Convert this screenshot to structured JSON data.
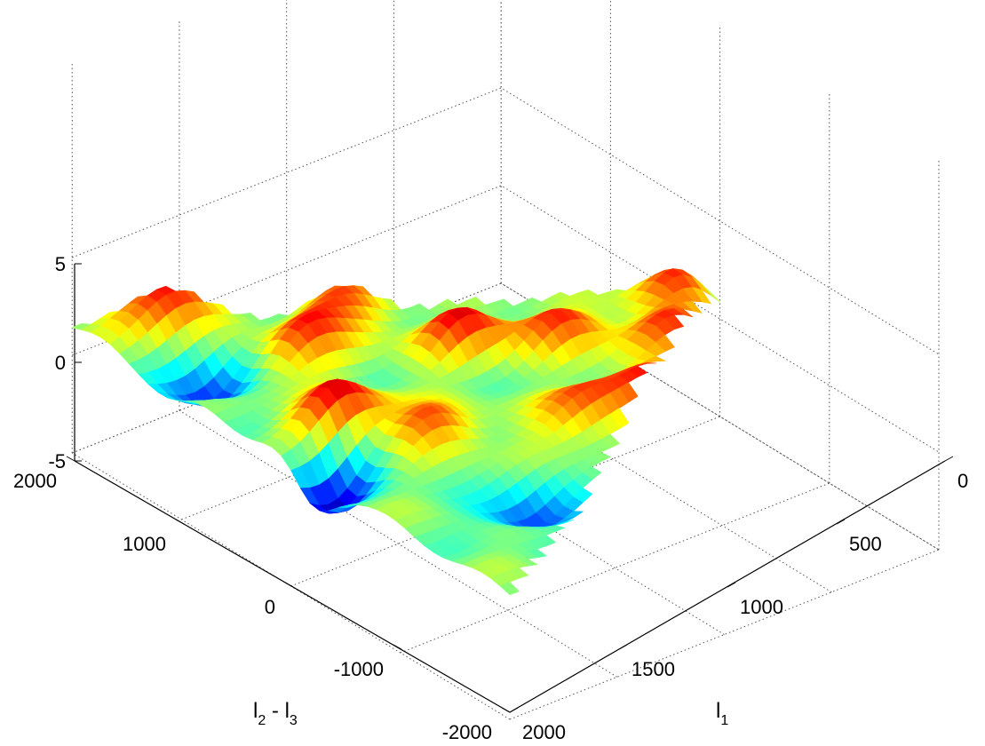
{
  "chart_data": {
    "type": "surface",
    "xlabel_parts": [
      "l",
      "1"
    ],
    "ylabel_parts": [
      "l",
      "2",
      " - ",
      "l",
      "3"
    ],
    "zlabel": "",
    "xlim": [
      0,
      2000
    ],
    "ylim": [
      -2000,
      2000
    ],
    "zlim": [
      -5,
      5
    ],
    "x_ticks": [
      0,
      500,
      1000,
      1500,
      2000
    ],
    "y_ticks": [
      -2000,
      -1000,
      0,
      1000,
      2000
    ],
    "z_ticks": [
      -5,
      0,
      5
    ],
    "x_tick_labels": [
      "0",
      "500",
      "1000",
      "1500",
      "2000"
    ],
    "y_tick_labels": [
      "-2000",
      "-1000",
      "0",
      "1000",
      "2000"
    ],
    "z_tick_labels": [
      "-5",
      "0",
      "5"
    ],
    "grid": true,
    "colormap": "jet",
    "surface_domain": "triangle |l2 - l3| <= l1",
    "peaks": [
      {
        "x": 1700,
        "y": 150,
        "z": 4.5
      },
      {
        "x": 1500,
        "y": 900,
        "z": 3.5
      },
      {
        "x": 1700,
        "y": 1700,
        "z": 4.0
      },
      {
        "x": 1000,
        "y": 400,
        "z": 3.5
      },
      {
        "x": 1200,
        "y": 1100,
        "z": 3.0
      },
      {
        "x": 1500,
        "y": -300,
        "z": 3.0
      },
      {
        "x": 700,
        "y": 100,
        "z": 3.0
      },
      {
        "x": 1000,
        "y": -700,
        "z": 3.0
      },
      {
        "x": 400,
        "y": -300,
        "z": 3.0
      },
      {
        "x": 700,
        "y": -700,
        "z": 3.0
      },
      {
        "x": 350,
        "y": -1100,
        "z": 3.0
      },
      {
        "x": 150,
        "y": 50,
        "z": 4.0
      }
    ],
    "troughs": [
      {
        "x": 1900,
        "y": -200,
        "z": -4.5
      },
      {
        "x": 1800,
        "y": 1100,
        "z": -3.5
      },
      {
        "x": 1500,
        "y": -1200,
        "z": -3.0
      },
      {
        "x": 0,
        "y": 0,
        "z": -3.0
      }
    ]
  }
}
